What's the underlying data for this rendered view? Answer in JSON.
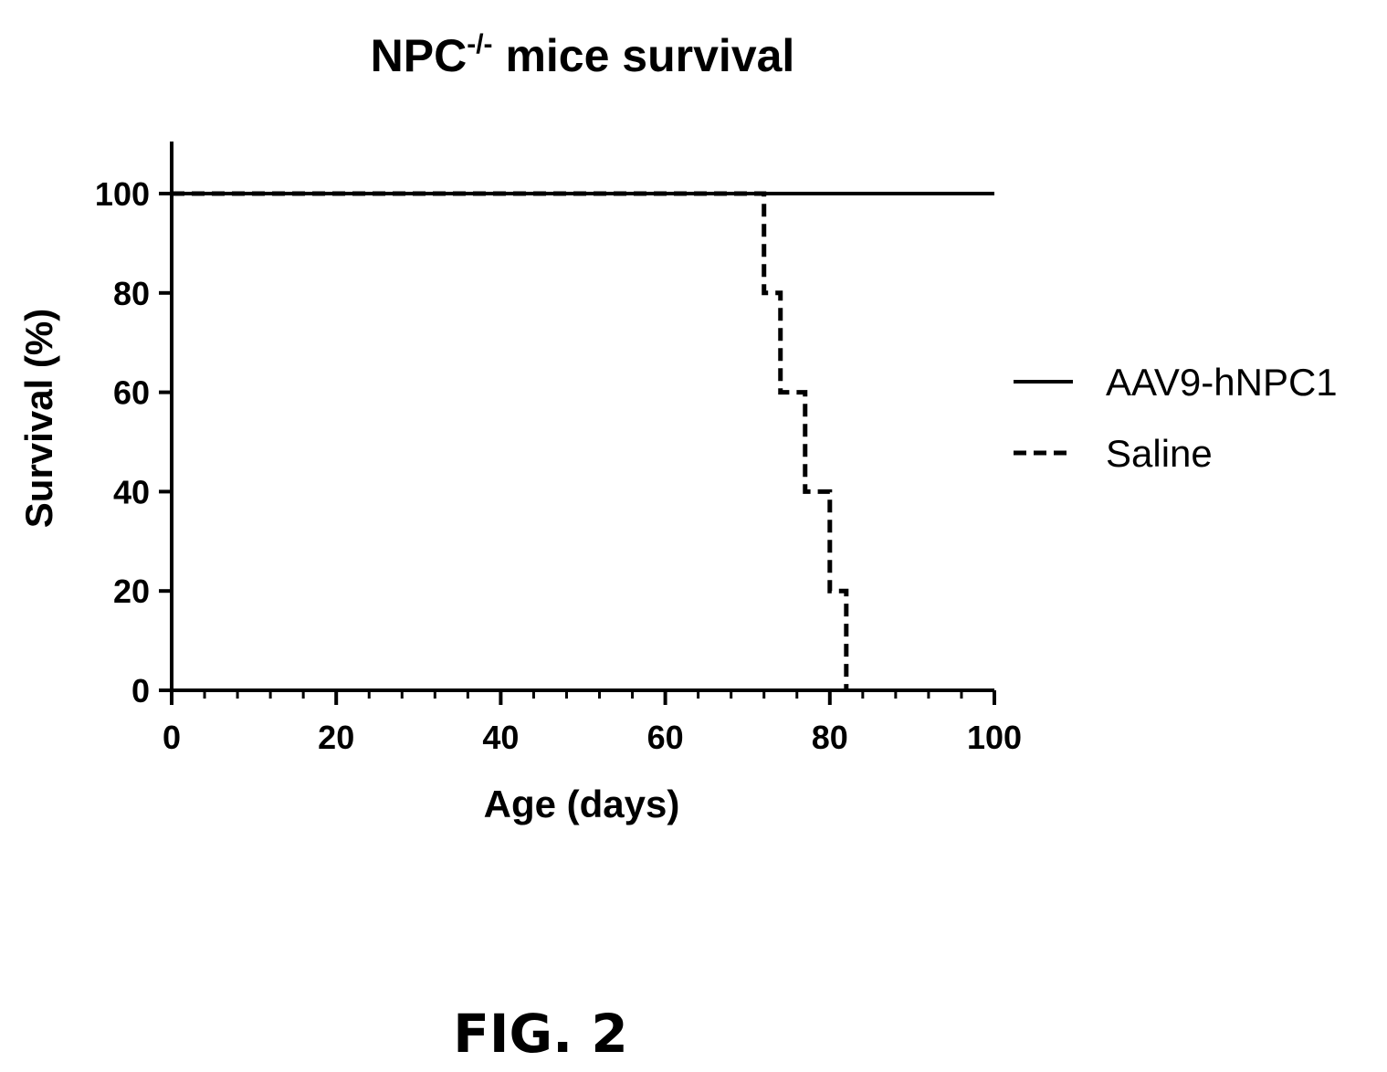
{
  "chart_data": {
    "type": "line",
    "title": {
      "prefix": "NPC",
      "superscript": "-/-",
      "suffix": " mice survival"
    },
    "xlabel": "Age (days)",
    "ylabel": "Survival (%)",
    "xlim": [
      0,
      100
    ],
    "ylim": [
      0,
      110
    ],
    "x_ticks": [
      0,
      20,
      40,
      60,
      80,
      100
    ],
    "x_tick_labels": [
      "0",
      "20",
      "40",
      "60",
      "80",
      "100"
    ],
    "y_ticks": [
      0,
      20,
      40,
      60,
      80,
      100
    ],
    "y_tick_labels": [
      "0",
      "20",
      "40",
      "60",
      "80",
      "100"
    ],
    "x_minor_tick_step": 4,
    "grid": false,
    "legend_position": "right",
    "series": [
      {
        "name": "AAV9-hNPC1",
        "style": "solid",
        "color": "#000000",
        "step": true,
        "points": [
          [
            0,
            100
          ],
          [
            100,
            100
          ]
        ]
      },
      {
        "name": "Saline",
        "style": "dashed",
        "color": "#000000",
        "step": true,
        "points": [
          [
            0,
            100
          ],
          [
            72,
            100
          ],
          [
            72,
            80
          ],
          [
            74,
            80
          ],
          [
            74,
            60
          ],
          [
            77,
            60
          ],
          [
            77,
            40
          ],
          [
            80,
            40
          ],
          [
            80,
            20
          ],
          [
            82,
            20
          ],
          [
            82,
            0
          ]
        ]
      }
    ]
  },
  "caption": "FIG. 2"
}
